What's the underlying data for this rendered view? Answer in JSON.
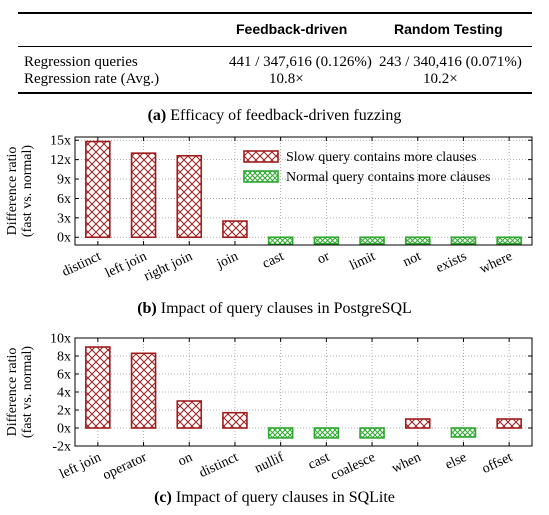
{
  "table": {
    "headers": [
      "Feedback-driven",
      "Random Testing"
    ],
    "rows": [
      {
        "label": "Regression queries",
        "values": [
          "441 / 347,616 (0.126%)",
          "243 / 340,416 (0.071%)"
        ]
      },
      {
        "label": "Regression rate (Avg.)",
        "values": [
          "10.8×",
          "10.2×"
        ]
      }
    ],
    "caption_tag": "(a)",
    "caption_text": "Efficacy of feedback-driven fuzzing"
  },
  "colors": {
    "slow": "#a01c1c",
    "normal": "#2ea82e"
  },
  "chart_data": [
    {
      "type": "bar",
      "caption_tag": "(b)",
      "caption_text": "Impact of query clauses in PostgreSQL",
      "ylabel_line1": "Difference ratio",
      "ylabel_line2": "(fast vs. normal)",
      "ylim": [
        -1.2,
        15.5
      ],
      "yticks": [
        0,
        3,
        6,
        9,
        12,
        15
      ],
      "ytick_labels": [
        "0x",
        "3x",
        "6x",
        "9x",
        "12x",
        "15x"
      ],
      "grid": true,
      "legend": {
        "placement": "top-right",
        "entries": [
          "Slow query contains more clauses",
          "Normal query contains more clauses"
        ]
      },
      "categories": [
        "distinct",
        "left join",
        "right join",
        "join",
        "cast",
        "or",
        "limit",
        "not",
        "exists",
        "where"
      ],
      "values": [
        14.8,
        13.0,
        12.6,
        2.5,
        -1.1,
        -1.0,
        -1.0,
        -1.0,
        -1.0,
        -1.0
      ],
      "kinds": [
        "slow",
        "slow",
        "slow",
        "slow",
        "normal",
        "normal",
        "normal",
        "normal",
        "normal",
        "normal"
      ]
    },
    {
      "type": "bar",
      "caption_tag": "(c)",
      "caption_text": "Impact of query clauses in SQLite",
      "ylabel_line1": "Difference ratio",
      "ylabel_line2": "(fast vs. normal)",
      "ylim": [
        -2,
        10
      ],
      "yticks": [
        -2,
        0,
        2,
        4,
        6,
        8,
        10
      ],
      "ytick_labels": [
        "-2x",
        "0x",
        "2x",
        "4x",
        "6x",
        "8x",
        "10x"
      ],
      "grid": true,
      "categories": [
        "left join",
        "operator",
        "on",
        "distinct",
        "nullif",
        "cast",
        "coalesce",
        "when",
        "else",
        "offset"
      ],
      "values": [
        9.0,
        8.3,
        3.0,
        1.7,
        -1.1,
        -1.1,
        -1.1,
        1.0,
        -1.0,
        1.0
      ],
      "kinds": [
        "slow",
        "slow",
        "slow",
        "slow",
        "normal",
        "normal",
        "normal",
        "slow",
        "normal",
        "slow"
      ]
    }
  ]
}
